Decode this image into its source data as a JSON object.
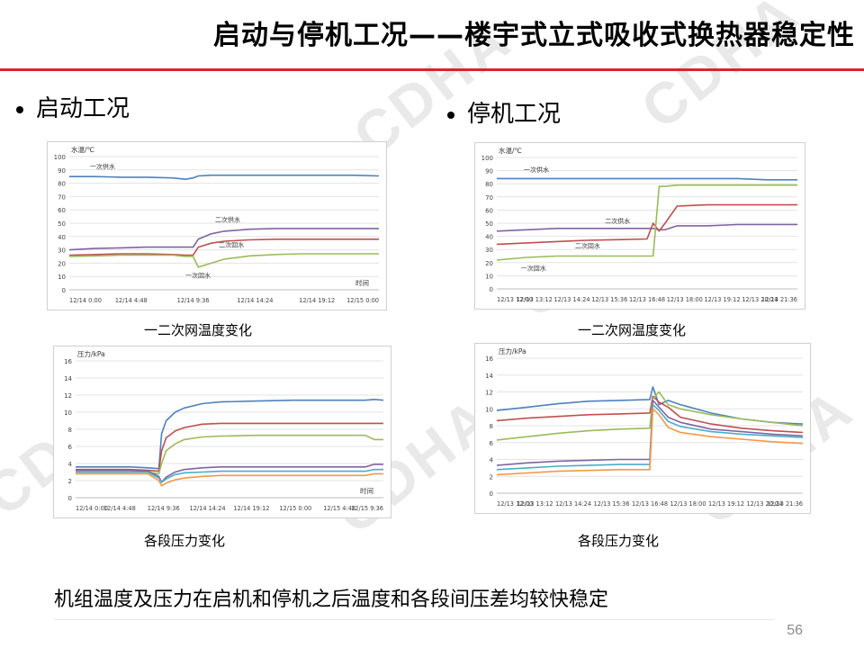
{
  "slide": {
    "title": "启动与停机工况——楼宇式立式吸收式换热器稳定性",
    "bullet_left": "启动工况",
    "bullet_right": "停机工况",
    "summary": "机组温度及压力在启机和停机之后温度和各段间压差均较快稳定",
    "page_number": "56",
    "watermark": "CDHA",
    "accent_color": "#d9262c"
  },
  "captions": {
    "start_temp": "一二次网温度变化",
    "stop_temp": "一二次网温度变化",
    "start_pressure": "各段压力变化",
    "stop_pressure": "各段压力变化"
  },
  "chart_data": [
    {
      "id": "start_temp",
      "type": "line",
      "ylabel": "水温/℃",
      "xlabel": "时间",
      "ylim": [
        0,
        100
      ],
      "yticks": [
        0,
        10,
        20,
        30,
        40,
        50,
        60,
        70,
        80,
        90,
        100
      ],
      "xticks": [
        "12/14 0:00",
        "12/14 4:48",
        "12/14 9:36",
        "12/14 14:24",
        "12/14 19:12",
        "12/15 0:00"
      ],
      "x": [
        0,
        2,
        4,
        6,
        8,
        9,
        9.6,
        10,
        11,
        12,
        14,
        16,
        18,
        20,
        22,
        24
      ],
      "grid": true,
      "series": [
        {
          "name": "一次供水",
          "color": "#4f81bd",
          "values": [
            85,
            85,
            84.5,
            84.5,
            84,
            83,
            84,
            85.5,
            86,
            86,
            86,
            86,
            86,
            86,
            86,
            85.5
          ]
        },
        {
          "name": "二次供水",
          "color": "#8064a2",
          "values": [
            30,
            31,
            31.5,
            32,
            32,
            32,
            32,
            38,
            42,
            44,
            45.5,
            46,
            46,
            46,
            46,
            46
          ]
        },
        {
          "name": "二次回水",
          "color": "#c0504d",
          "values": [
            26,
            26.5,
            27,
            27,
            26.5,
            26,
            26,
            32,
            35,
            36.5,
            37.5,
            38,
            38,
            38,
            38,
            38
          ]
        },
        {
          "name": "一次回水",
          "color": "#9bbb59",
          "values": [
            25,
            25.5,
            26,
            26,
            26,
            25,
            25,
            17,
            20,
            23,
            25.5,
            26.5,
            27,
            27,
            27,
            27
          ]
        }
      ],
      "annotations": [
        {
          "text": "一次供水",
          "x": 1.6,
          "y": 91
        },
        {
          "text": "二次供水",
          "x": 11.3,
          "y": 51
        },
        {
          "text": "二次回水",
          "x": 11.6,
          "y": 32
        },
        {
          "text": "一次回水",
          "x": 9.0,
          "y": 9
        }
      ]
    },
    {
      "id": "stop_temp",
      "type": "line",
      "ylabel": "水温/℃",
      "xlabel": "",
      "ylim": [
        0,
        100
      ],
      "yticks": [
        0,
        10,
        20,
        30,
        40,
        50,
        60,
        70,
        80,
        90,
        100
      ],
      "xticks": [
        "12/13 12:00",
        "12/13 13:12",
        "12/13 14:24",
        "12/13 15:36",
        "12/13 16:48",
        "12/13 18:00",
        "12/13 19:12",
        "12/13 20:24",
        "12/13 21:36"
      ],
      "x": [
        12,
        13,
        14,
        15,
        16,
        17,
        17.2,
        17.4,
        17.6,
        18,
        19,
        20,
        21,
        22
      ],
      "grid": true,
      "series": [
        {
          "name": "一次供水",
          "color": "#4f81bd",
          "values": [
            84,
            84,
            84,
            84,
            84,
            84,
            84,
            84,
            84,
            84,
            84,
            84,
            83,
            83
          ]
        },
        {
          "name": "二次供水",
          "color": "#8064a2",
          "values": [
            44,
            45,
            46,
            46,
            46,
            46,
            46,
            45,
            45,
            48,
            48,
            49,
            49,
            49
          ]
        },
        {
          "name": "二次回水",
          "color": "#c0504d",
          "values": [
            34,
            35,
            36,
            37,
            37.5,
            38,
            50,
            44,
            50,
            63,
            64,
            64,
            64,
            64
          ]
        },
        {
          "name": "一次回水",
          "color": "#9bbb59",
          "values": [
            22,
            24,
            25,
            25,
            25,
            25,
            25,
            78,
            78,
            79,
            79,
            79,
            79,
            79
          ]
        }
      ],
      "annotations": [
        {
          "text": "一次供水",
          "x": 12.9,
          "y": 89
        },
        {
          "text": "二次供水",
          "x": 15.6,
          "y": 50
        },
        {
          "text": "二次回水",
          "x": 14.6,
          "y": 31
        },
        {
          "text": "一次回水",
          "x": 12.8,
          "y": 14
        }
      ]
    },
    {
      "id": "start_pressure",
      "type": "line",
      "ylabel": "压力/kPa",
      "xlabel": "时间",
      "ylim": [
        0,
        16
      ],
      "yticks": [
        0,
        2,
        4,
        6,
        8,
        10,
        12,
        14,
        16
      ],
      "xticks": [
        "12/14 0:00",
        "12/14 4:48",
        "12/14 9:36",
        "12/14 14:24",
        "12/14 19:12",
        "12/15 0:00",
        "12/15 4:48",
        "12/15 9:36"
      ],
      "x": [
        0,
        2,
        4,
        6,
        8,
        9.2,
        9.5,
        10,
        11,
        12,
        14,
        16,
        20,
        24,
        28,
        32,
        33,
        34
      ],
      "grid": true,
      "series": [
        {
          "name": "",
          "color": "#4f81bd",
          "values": [
            3.6,
            3.6,
            3.6,
            3.6,
            3.5,
            3.4,
            7.5,
            9,
            10,
            10.5,
            11,
            11.2,
            11.3,
            11.4,
            11.4,
            11.4,
            11.5,
            11.4
          ]
        },
        {
          "name": "",
          "color": "#c0504d",
          "values": [
            3.3,
            3.3,
            3.3,
            3.3,
            3.2,
            3.1,
            5.5,
            7,
            7.8,
            8.2,
            8.6,
            8.7,
            8.7,
            8.7,
            8.7,
            8.7,
            8.7,
            8.7
          ]
        },
        {
          "name": "",
          "color": "#9bbb59",
          "values": [
            3.0,
            3.0,
            3.0,
            3.0,
            3.0,
            2.8,
            4.0,
            5.5,
            6.3,
            6.8,
            7.1,
            7.2,
            7.3,
            7.3,
            7.3,
            7.3,
            6.8,
            6.8
          ]
        },
        {
          "name": "",
          "color": "#8064a2",
          "values": [
            3.2,
            3.2,
            3.2,
            3.2,
            3.1,
            2.5,
            1.8,
            2.4,
            3.0,
            3.3,
            3.5,
            3.6,
            3.6,
            3.6,
            3.6,
            3.6,
            3.9,
            3.9
          ]
        },
        {
          "name": "",
          "color": "#4bacc6",
          "values": [
            3.0,
            3.0,
            3.0,
            3.0,
            3.0,
            2.3,
            1.8,
            2.2,
            2.7,
            2.9,
            3.0,
            3.1,
            3.1,
            3.1,
            3.1,
            3.1,
            3.3,
            3.3
          ]
        },
        {
          "name": "",
          "color": "#f79646",
          "values": [
            2.8,
            2.8,
            2.8,
            2.8,
            2.8,
            2.0,
            1.4,
            1.7,
            2.1,
            2.3,
            2.5,
            2.6,
            2.6,
            2.6,
            2.6,
            2.6,
            2.8,
            2.8
          ]
        }
      ],
      "annotations": []
    },
    {
      "id": "stop_pressure",
      "type": "line",
      "ylabel": "压力/kPa",
      "xlabel": "",
      "ylim": [
        0,
        16
      ],
      "yticks": [
        0,
        2,
        4,
        6,
        8,
        10,
        12,
        14,
        16
      ],
      "xticks": [
        "12/13 12:00",
        "12/13 13:12",
        "12/13 14:24",
        "12/13 15:36",
        "12/13 16:48",
        "12/13 18:00",
        "12/13 19:12",
        "12/13 20:24",
        "12/13 21:36"
      ],
      "x": [
        12,
        13,
        14,
        15,
        16,
        17,
        17.1,
        17.3,
        17.6,
        18,
        19,
        20,
        21,
        22
      ],
      "grid": true,
      "series": [
        {
          "name": "",
          "color": "#4f81bd",
          "values": [
            9.8,
            10.2,
            10.6,
            10.9,
            11.0,
            11.1,
            12.6,
            10.5,
            11.0,
            10.5,
            9.5,
            8.8,
            8.4,
            8.2
          ]
        },
        {
          "name": "",
          "color": "#c0504d",
          "values": [
            8.6,
            8.9,
            9.1,
            9.3,
            9.4,
            9.5,
            11.5,
            10.8,
            10.2,
            9.0,
            8.2,
            7.7,
            7.4,
            7.2
          ]
        },
        {
          "name": "",
          "color": "#9bbb59",
          "values": [
            6.3,
            6.7,
            7.1,
            7.4,
            7.6,
            7.7,
            11.2,
            12.0,
            10.5,
            10.0,
            9.3,
            8.8,
            8.4,
            8.0
          ]
        },
        {
          "name": "",
          "color": "#8064a2",
          "values": [
            3.3,
            3.6,
            3.8,
            3.9,
            4.0,
            4.0,
            11.0,
            10.2,
            9.0,
            8.4,
            7.6,
            7.3,
            7.0,
            6.8
          ]
        },
        {
          "name": "",
          "color": "#4bacc6",
          "values": [
            2.8,
            3.0,
            3.2,
            3.3,
            3.4,
            3.4,
            10.5,
            9.8,
            8.5,
            7.9,
            7.3,
            7.0,
            6.8,
            6.6
          ]
        },
        {
          "name": "",
          "color": "#f79646",
          "values": [
            2.2,
            2.4,
            2.6,
            2.7,
            2.8,
            2.8,
            10.0,
            9.3,
            7.8,
            7.2,
            6.7,
            6.4,
            6.1,
            5.9
          ]
        }
      ],
      "annotations": []
    }
  ]
}
